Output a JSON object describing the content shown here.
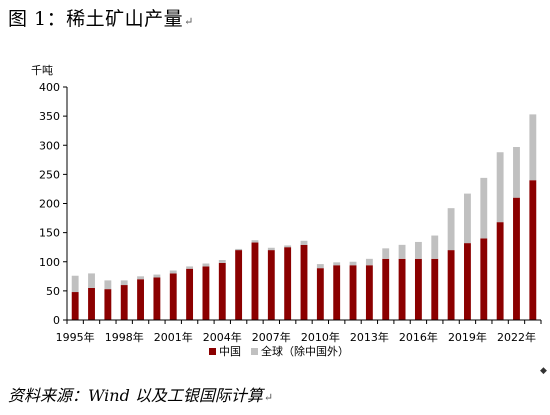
{
  "header": {
    "title": "图 1：稀土矿山产量",
    "para_mark": "↵"
  },
  "footer": {
    "source": "资料来源：Wind 以及工银国际计算",
    "para_mark": "↵",
    "corner_mark": "◆"
  },
  "colors": {
    "china": "#8B0000",
    "global_ex_china": "#C0C0C0",
    "axis": "#000000"
  },
  "chart_data": {
    "type": "bar",
    "stacked": true,
    "unit_label": "千吨",
    "ylim": [
      0,
      400
    ],
    "yticks": [
      0,
      50,
      100,
      150,
      200,
      250,
      300,
      350,
      400
    ],
    "x": [
      1995,
      1996,
      1997,
      1998,
      1999,
      2000,
      2001,
      2002,
      2003,
      2004,
      2005,
      2006,
      2007,
      2008,
      2009,
      2010,
      2011,
      2012,
      2013,
      2014,
      2015,
      2016,
      2017,
      2018,
      2019,
      2020,
      2021,
      2022,
      2023
    ],
    "xtick_labels": [
      {
        "year": 1995,
        "label": "1995年"
      },
      {
        "year": 1998,
        "label": "1998年"
      },
      {
        "year": 2001,
        "label": "2001年"
      },
      {
        "year": 2004,
        "label": "2004年"
      },
      {
        "year": 2007,
        "label": "2007年"
      },
      {
        "year": 2010,
        "label": "2010年"
      },
      {
        "year": 2013,
        "label": "2013年"
      },
      {
        "year": 2016,
        "label": "2016年"
      },
      {
        "year": 2019,
        "label": "2019年"
      },
      {
        "year": 2022,
        "label": "2022年"
      }
    ],
    "series": [
      {
        "name": "中国",
        "values": [
          48,
          55,
          53,
          60,
          70,
          73,
          80,
          88,
          92,
          98,
          120,
          133,
          120,
          125,
          129,
          89,
          94,
          94,
          94,
          105,
          105,
          105,
          105,
          120,
          132,
          140,
          168,
          210,
          240
        ]
      },
      {
        "name": "全球（除中国外）",
        "values": [
          28,
          25,
          15,
          8,
          5,
          5,
          5,
          4,
          5,
          5,
          2,
          4,
          4,
          3,
          7,
          7,
          5,
          6,
          11,
          18,
          24,
          29,
          40,
          72,
          85,
          104,
          120,
          87,
          113
        ]
      }
    ],
    "legend_position": "bottom"
  }
}
